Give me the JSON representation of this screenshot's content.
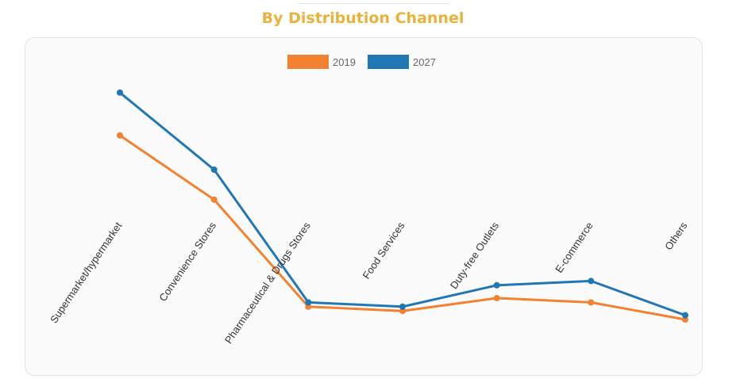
{
  "title": "By Distribution Channel",
  "chart_data": {
    "type": "line",
    "categories": [
      "Supermarket/hypermarket",
      "Convenience Stores",
      "Pharmaceutical & Drugs Stores",
      "Food Services",
      "Duty-free Outlets",
      "E-commerce",
      "Others"
    ],
    "series": [
      {
        "name": "2019",
        "color": "#f28230",
        "values": [
          73,
          58,
          33,
          32,
          35,
          34,
          30
        ]
      },
      {
        "name": "2027",
        "color": "#1f77b4",
        "values": [
          83,
          65,
          34,
          33,
          38,
          39,
          31
        ]
      }
    ],
    "legend_position": "top-center",
    "grid": false,
    "y_axis_visible": false
  }
}
